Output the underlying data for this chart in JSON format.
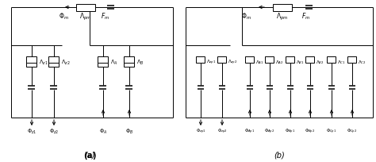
{
  "bg_color": "#ffffff",
  "line_color": "#000000",
  "fig_width": 4.74,
  "fig_height": 2.04,
  "dpi": 100
}
